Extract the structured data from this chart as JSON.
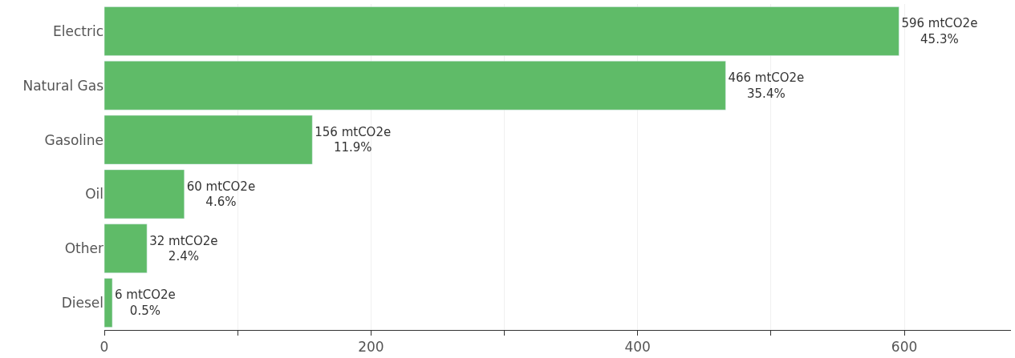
{
  "chart_data": {
    "type": "bar",
    "orientation": "horizontal",
    "categories": [
      "Electric",
      "Natural Gas",
      "Gasoline",
      "Oil",
      "Other",
      "Diesel"
    ],
    "values": [
      596,
      466,
      156,
      60,
      32,
      6
    ],
    "color": "#5fbb68",
    "value_labels": [
      "596 mtCO2e\n45.3%",
      "466 mtCO2e\n35.4%",
      "156 mtCO2e\n11.9%",
      "60 mtCO2e\n4.6%",
      "32 mtCO2e\n2.4%",
      "6 mtCO2e\n0.5%"
    ],
    "xlim": [
      0,
      680
    ],
    "xticks": [
      0,
      {
        "value": 100,
        "label": null
      },
      200,
      {
        "value": 300,
        "label": null
      },
      400,
      {
        "value": 500,
        "label": null
      },
      600
    ],
    "grid": "x",
    "legend": false
  }
}
